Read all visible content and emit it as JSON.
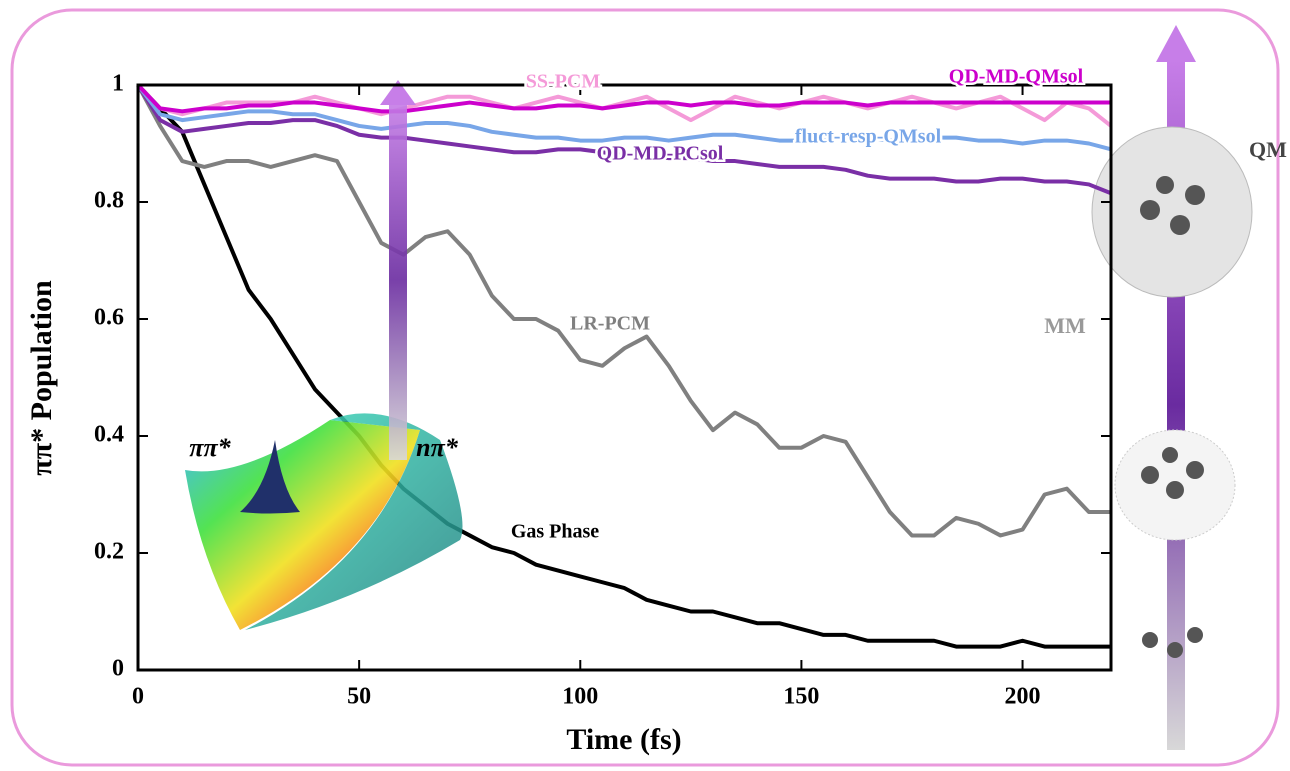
{
  "chart_data": {
    "type": "line",
    "xlabel": "Time (fs)",
    "ylabel": "ππ* Population",
    "x": [
      0,
      5,
      10,
      15,
      20,
      25,
      30,
      35,
      40,
      45,
      50,
      55,
      60,
      65,
      70,
      75,
      80,
      85,
      90,
      95,
      100,
      105,
      110,
      115,
      120,
      125,
      130,
      135,
      140,
      145,
      150,
      155,
      160,
      165,
      170,
      175,
      180,
      185,
      190,
      195,
      200,
      205,
      210,
      215,
      220
    ],
    "xlim": [
      0,
      220
    ],
    "ylim": [
      0,
      1
    ],
    "xticks": [
      0,
      50,
      100,
      150,
      200
    ],
    "yticks": [
      0,
      0.2,
      0.4,
      0.6,
      0.8,
      1
    ],
    "series": [
      {
        "name": "Gas Phase",
        "color": "#000000",
        "values": [
          1,
          0.96,
          0.92,
          0.83,
          0.74,
          0.65,
          0.6,
          0.54,
          0.48,
          0.44,
          0.4,
          0.35,
          0.31,
          0.28,
          0.25,
          0.23,
          0.21,
          0.2,
          0.18,
          0.17,
          0.16,
          0.15,
          0.14,
          0.12,
          0.11,
          0.1,
          0.1,
          0.09,
          0.08,
          0.08,
          0.07,
          0.06,
          0.06,
          0.05,
          0.05,
          0.05,
          0.05,
          0.04,
          0.04,
          0.04,
          0.05,
          0.04,
          0.04,
          0.04,
          0.04
        ]
      },
      {
        "name": "LR-PCM",
        "color": "#808080",
        "values": [
          1,
          0.93,
          0.87,
          0.86,
          0.87,
          0.87,
          0.86,
          0.87,
          0.88,
          0.87,
          0.8,
          0.73,
          0.71,
          0.74,
          0.75,
          0.71,
          0.64,
          0.6,
          0.6,
          0.58,
          0.53,
          0.52,
          0.55,
          0.57,
          0.52,
          0.46,
          0.41,
          0.44,
          0.42,
          0.38,
          0.38,
          0.4,
          0.39,
          0.33,
          0.27,
          0.23,
          0.23,
          0.26,
          0.25,
          0.23,
          0.24,
          0.3,
          0.31,
          0.27,
          0.27
        ]
      },
      {
        "name": "QD-MD-PCsol",
        "color": "#7a2fa6",
        "values": [
          1,
          0.94,
          0.92,
          0.925,
          0.93,
          0.935,
          0.935,
          0.94,
          0.94,
          0.93,
          0.915,
          0.91,
          0.91,
          0.905,
          0.9,
          0.895,
          0.89,
          0.885,
          0.885,
          0.89,
          0.89,
          0.885,
          0.88,
          0.88,
          0.875,
          0.875,
          0.87,
          0.87,
          0.865,
          0.86,
          0.86,
          0.86,
          0.855,
          0.845,
          0.84,
          0.84,
          0.84,
          0.835,
          0.835,
          0.84,
          0.84,
          0.835,
          0.835,
          0.83,
          0.815
        ]
      },
      {
        "name": "fluct-resp-QMsol",
        "color": "#78a6e8",
        "values": [
          1,
          0.95,
          0.94,
          0.945,
          0.95,
          0.955,
          0.955,
          0.95,
          0.95,
          0.94,
          0.93,
          0.925,
          0.93,
          0.935,
          0.935,
          0.93,
          0.92,
          0.915,
          0.91,
          0.91,
          0.905,
          0.905,
          0.91,
          0.91,
          0.905,
          0.91,
          0.915,
          0.915,
          0.91,
          0.905,
          0.905,
          0.91,
          0.91,
          0.91,
          0.905,
          0.905,
          0.91,
          0.91,
          0.905,
          0.905,
          0.9,
          0.905,
          0.905,
          0.9,
          0.89
        ]
      },
      {
        "name": "SS-PCM",
        "color": "#f49ad8",
        "values": [
          1,
          0.96,
          0.95,
          0.96,
          0.97,
          0.97,
          0.97,
          0.97,
          0.98,
          0.97,
          0.96,
          0.95,
          0.96,
          0.97,
          0.98,
          0.98,
          0.97,
          0.96,
          0.97,
          0.98,
          0.97,
          0.96,
          0.97,
          0.98,
          0.96,
          0.94,
          0.96,
          0.98,
          0.97,
          0.96,
          0.97,
          0.98,
          0.97,
          0.96,
          0.97,
          0.98,
          0.97,
          0.96,
          0.97,
          0.98,
          0.96,
          0.94,
          0.97,
          0.96,
          0.93
        ]
      },
      {
        "name": "QD-MD-QMsol",
        "color": "#cc00cc",
        "values": [
          1,
          0.96,
          0.955,
          0.96,
          0.96,
          0.965,
          0.965,
          0.97,
          0.97,
          0.965,
          0.96,
          0.955,
          0.955,
          0.96,
          0.965,
          0.97,
          0.965,
          0.96,
          0.96,
          0.965,
          0.965,
          0.96,
          0.965,
          0.97,
          0.97,
          0.965,
          0.97,
          0.97,
          0.965,
          0.965,
          0.97,
          0.97,
          0.97,
          0.965,
          0.97,
          0.97,
          0.97,
          0.97,
          0.97,
          0.97,
          0.97,
          0.97,
          0.97,
          0.97,
          0.97
        ]
      }
    ],
    "annotations": [
      "ππ*",
      "nπ*",
      "QM",
      "MM"
    ]
  }
}
